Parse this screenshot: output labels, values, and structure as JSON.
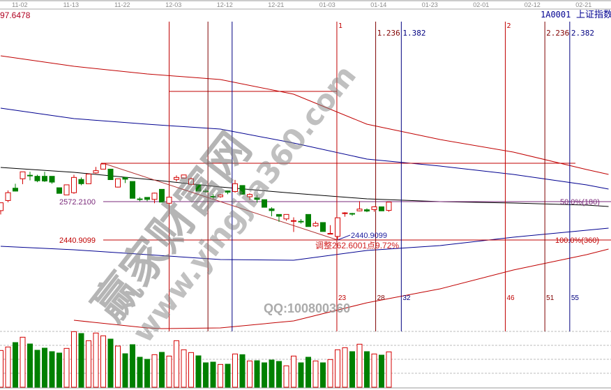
{
  "header": {
    "top_left_value": "97.6478",
    "symbol": "1A0001",
    "index_name": "上证指数"
  },
  "watermark": {
    "site_name": "赢家财富网",
    "url": "www.yingjia360.com",
    "contact": "QQ:100800360"
  },
  "colors": {
    "up": "#d40000",
    "down": "#008000",
    "fib_red": "#c00000",
    "fib_darkred": "#800000",
    "fib_blue": "#000080",
    "support_purple": "#7b2a7b",
    "ma_red": "#c00000",
    "ma_blue": "#000090",
    "ma_black": "#000000"
  },
  "chart_data": {
    "type": "candlestick",
    "x_tick_labels": [
      "11-02",
      "11-13",
      "11-22",
      "12-03",
      "12-12",
      "12-21",
      "01-03",
      "01-14",
      "01-23",
      "02-01",
      "02-12",
      "02-21"
    ],
    "grid": false,
    "candles_ohlc": [
      [
        2541.4,
        2568.3,
        2528.4,
        2568.3
      ],
      [
        2576.0,
        2610.5,
        2569.8,
        2602.8
      ],
      [
        2618.2,
        2633.5,
        2606.7,
        2608.2
      ],
      [
        2650.4,
        2674.2,
        2632.0,
        2674.2
      ],
      [
        2662.5,
        2674.2,
        2645.1,
        2662.0
      ],
      [
        2658.9,
        2664.2,
        2638.9,
        2643.5
      ],
      [
        2658.9,
        2674.2,
        2639.7,
        2642.8
      ],
      [
        2658.9,
        2658.9,
        2633.5,
        2638.9
      ],
      [
        2619.7,
        2619.7,
        2600.5,
        2600.5
      ],
      [
        2595.2,
        2629.7,
        2595.2,
        2629.7
      ],
      [
        2602.8,
        2664.2,
        2599.0,
        2655.0
      ],
      [
        2648.1,
        2655.0,
        2628.2,
        2633.5
      ],
      [
        2633.5,
        2666.5,
        2633.5,
        2666.5
      ],
      [
        2670.4,
        2691.1,
        2668.1,
        2678.1
      ],
      [
        2683.4,
        2703.5,
        2683.4,
        2701.1
      ],
      [
        2683.4,
        2683.4,
        2647.4,
        2647.4
      ],
      [
        2622.0,
        2650.4,
        2620.5,
        2650.4
      ],
      [
        2655.0,
        2655.0,
        2635.8,
        2648.9
      ],
      [
        2641.2,
        2641.2,
        2583.6,
        2583.6
      ],
      [
        2581.5,
        2587.5,
        2573.7,
        2581.3
      ],
      [
        2586.7,
        2587.5,
        2573.7,
        2579.8
      ],
      [
        2579.8,
        2602.8,
        2566.7,
        2601.3
      ],
      [
        2614.3,
        2614.3,
        2570.6,
        2570.6
      ],
      [
        2566.7,
        2587.5,
        2566.7,
        2587.5
      ],
      [
        2648.1,
        2662.0,
        2641.2,
        2655.0
      ],
      [
        2652.7,
        2663.5,
        2652.7,
        2663.5
      ],
      [
        2631.2,
        2655.0,
        2628.2,
        2650.4
      ],
      [
        2629.7,
        2629.7,
        2608.2,
        2608.2
      ],
      [
        2608.5,
        2615.9,
        2602.8,
        2608.2
      ],
      [
        2590.0,
        2597.5,
        2582.1,
        2589.8
      ],
      [
        2589.0,
        2597.5,
        2585.2,
        2595.2
      ],
      [
        2609.0,
        2610.5,
        2597.5,
        2604.4
      ],
      [
        2606.7,
        2646.6,
        2602.8,
        2633.5
      ],
      [
        2627.4,
        2627.4,
        2597.5,
        2597.5
      ],
      [
        2589.0,
        2600.5,
        2577.5,
        2596.7
      ],
      [
        2585.2,
        2595.2,
        2568.3,
        2579.8
      ],
      [
        2579.0,
        2579.0,
        2552.9,
        2552.9
      ],
      [
        2547.6,
        2552.9,
        2522.2,
        2541.4
      ],
      [
        2528.4,
        2528.4,
        2503.0,
        2522.2
      ],
      [
        2513.0,
        2528.4,
        2506.9,
        2528.4
      ],
      [
        2506.9,
        2518.4,
        2468.5,
        2507.2
      ],
      [
        2504.9,
        2512.3,
        2496.9,
        2504.6
      ],
      [
        2528.4,
        2528.4,
        2486.9,
        2486.9
      ],
      [
        2489.2,
        2504.6,
        2486.1,
        2497.7
      ],
      [
        2500.7,
        2500.7,
        2470.0,
        2470.0
      ],
      [
        2463.1,
        2491.5,
        2460.8,
        2463.4
      ],
      [
        2453.1,
        2516.9,
        2440.91,
        2516.9
      ],
      [
        2531.4,
        2536.0,
        2520.7,
        2533.7
      ],
      [
        2531.7,
        2533.7,
        2523.8,
        2531.4
      ],
      [
        2540.6,
        2573.7,
        2539.1,
        2546.8
      ],
      [
        2544.5,
        2549.1,
        2536.0,
        2539.9
      ],
      [
        2545.2,
        2556.8,
        2537.6,
        2554.5
      ],
      [
        2554.5,
        2554.5,
        2540.6,
        2540.6
      ],
      [
        2542.2,
        2570.6,
        2537.6,
        2570.6
      ]
    ],
    "volume_relative": [
      158,
      173,
      192,
      215,
      186,
      159,
      168,
      153,
      147,
      167,
      239,
      231,
      200,
      233,
      221,
      207,
      177,
      144,
      183,
      129,
      120,
      140,
      150,
      134,
      200,
      161,
      149,
      135,
      105,
      108,
      98,
      99,
      143,
      140,
      113,
      114,
      105,
      117,
      111,
      92,
      134,
      105,
      129,
      113,
      105,
      119,
      161,
      170,
      153,
      185,
      153,
      143,
      138,
      152
    ],
    "moving_averages": [
      {
        "color": "ma_red",
        "bars": [
          0,
          10,
          20,
          30,
          40,
          50,
          60,
          70,
          80,
          83
        ],
        "values": [
          3071.1,
          3035.3,
          3009.0,
          2989.9,
          2939.8,
          2837.2,
          2784.6,
          2741.7,
          2682.0,
          2665.3
        ]
      },
      {
        "color": "ma_blue",
        "bars": [
          0,
          10,
          20,
          30,
          40,
          50,
          60,
          70,
          80,
          83
        ],
        "values": [
          2892.1,
          2856.3,
          2837.2,
          2820.4,
          2772.7,
          2717.8,
          2693.9,
          2665.3,
          2629.5,
          2615.2
        ]
      },
      {
        "color": "ma_black",
        "bars": [
          0,
          10,
          20,
          30,
          40,
          50,
          60,
          70,
          80,
          83
        ],
        "values": [
          2689.2,
          2672.5,
          2648.6,
          2622.3,
          2600.8,
          2581.7,
          2572.2,
          2567.4,
          2560.3,
          2555.5
        ]
      },
      {
        "color": "ma_blue",
        "bars": [
          0,
          10,
          20,
          30,
          40,
          50,
          60,
          70,
          80,
          83
        ],
        "values": [
          2419.4,
          2407.5,
          2390.8,
          2374.1,
          2371.7,
          2405.1,
          2421.8,
          2450.5,
          2474.3,
          2481.5
        ]
      },
      {
        "color": "ma_red",
        "bars": [
          10,
          20,
          22,
          30,
          40,
          50,
          60,
          70,
          80,
          83
        ],
        "values": [
          2166.4,
          2140.0,
          2137.8,
          2140.2,
          2164.0,
          2226.1,
          2273.8,
          2338.3,
          2390.8,
          2409.9
        ]
      }
    ],
    "fib_time_lines": [
      {
        "bar": 23,
        "color": "fib_red",
        "top_label": "",
        "bottom_label": ""
      },
      {
        "bar": 28.3,
        "color": "fib_darkred",
        "top_label": "",
        "bottom_label": ""
      },
      {
        "bar": 31.6,
        "color": "fib_blue",
        "top_label": "",
        "bottom_label": ""
      },
      {
        "bar": 45.9,
        "color": "fib_red",
        "top_label": "1",
        "bottom_label": "23"
      },
      {
        "bar": 51.2,
        "color": "fib_darkred",
        "top_label": "1.236",
        "bottom_label": "28"
      },
      {
        "bar": 54.7,
        "color": "fib_blue",
        "top_label": "1.382",
        "bottom_label": "32"
      },
      {
        "bar": 68.9,
        "color": "fib_red",
        "top_label": "2",
        "bottom_label": "46"
      },
      {
        "bar": 74.3,
        "color": "fib_darkred",
        "top_label": "2.236",
        "bottom_label": "51"
      },
      {
        "bar": 77.7,
        "color": "fib_blue",
        "top_label": "2.382",
        "bottom_label": "55"
      }
    ],
    "box_top_price": 2949.3,
    "high_price": 2703.51,
    "levels": {
      "mid": {
        "price": 2572.21,
        "label": "2572.2100",
        "right_label": "50.0%(180)"
      },
      "low": {
        "price": 2440.9099,
        "label": "2440.9099",
        "right_label": "100.0%(360)"
      }
    },
    "trend_line": {
      "from_bar": 14,
      "from_price": 2703.51,
      "to_bar": 46,
      "to_price": 2440.91
    },
    "low_marker": "2440.9099",
    "adjustment_note": "调整262.6001点9.72%"
  }
}
